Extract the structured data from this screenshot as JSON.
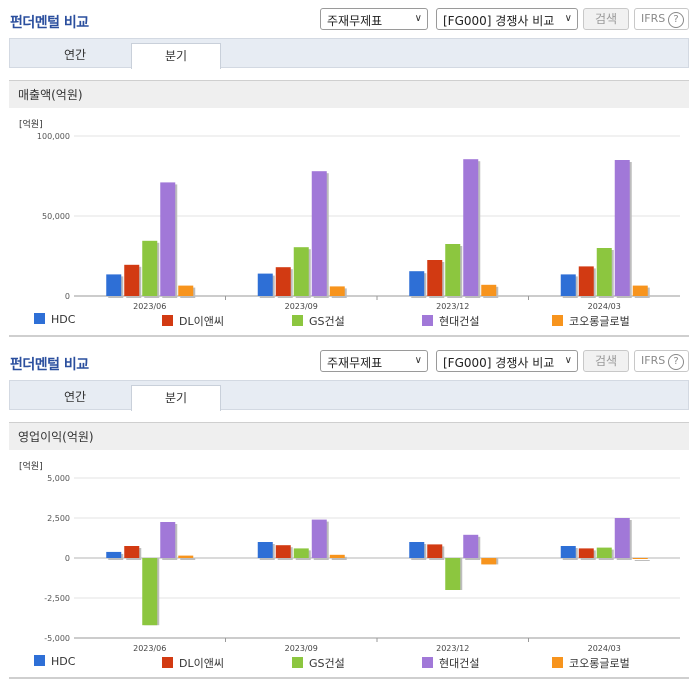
{
  "panels": [
    {
      "title": "펀더멘털 비교",
      "select_statement": "주재무제표",
      "select_group": "[FG000] 경쟁사 비교",
      "search_label": "검색",
      "ifrs_label": "IFRS",
      "ifrs_help": "?",
      "tabs": [
        {
          "label": "연간",
          "active": false
        },
        {
          "label": "분기",
          "active": true
        }
      ],
      "section_label": "매출액(억원)",
      "chart_data": {
        "type": "bar",
        "title": "매출액(억원)",
        "unit_label": "[억원]",
        "categories": [
          "2023/06",
          "2023/09",
          "2023/12",
          "2024/03"
        ],
        "yticks": [
          "100,000",
          "50,000",
          "0"
        ],
        "ytick_values": [
          100000,
          50000,
          0
        ],
        "ylim": [
          0,
          100000
        ],
        "legend_position": "bottom",
        "series": [
          {
            "name": "HDC",
            "color": "#2e6fd6",
            "values": [
              13500,
              14000,
              15500,
              13500
            ]
          },
          {
            "name": "DL이앤씨",
            "color": "#d23a12",
            "values": [
              19500,
              18000,
              22500,
              18500
            ]
          },
          {
            "name": "GS건설",
            "color": "#8cc63f",
            "values": [
              34500,
              30500,
              32500,
              30000
            ]
          },
          {
            "name": "현대건설",
            "color": "#a178d8",
            "values": [
              71000,
              78000,
              85500,
              85000
            ]
          },
          {
            "name": "코오롱글로벌",
            "color": "#f7941d",
            "values": [
              6500,
              6000,
              7000,
              6500
            ]
          }
        ]
      }
    },
    {
      "title": "펀더멘털 비교",
      "select_statement": "주재무제표",
      "select_group": "[FG000] 경쟁사 비교",
      "search_label": "검색",
      "ifrs_label": "IFRS",
      "ifrs_help": "?",
      "tabs": [
        {
          "label": "연간",
          "active": false
        },
        {
          "label": "분기",
          "active": true
        }
      ],
      "section_label": "영업이익(억원)",
      "chart_data": {
        "type": "bar",
        "title": "영업이익(억원)",
        "unit_label": "[억원]",
        "categories": [
          "2023/06",
          "2023/09",
          "2023/12",
          "2024/03"
        ],
        "yticks": [
          "5,000",
          "2,500",
          "0",
          "-2,500",
          "-5,000"
        ],
        "ytick_values": [
          5000,
          2500,
          0,
          -2500,
          -5000
        ],
        "ylim": [
          -5000,
          5000
        ],
        "legend_position": "bottom",
        "series": [
          {
            "name": "HDC",
            "color": "#2e6fd6",
            "values": [
              380,
              1000,
              1000,
              750
            ]
          },
          {
            "name": "DL이앤씨",
            "color": "#d23a12",
            "values": [
              750,
              800,
              850,
              600
            ]
          },
          {
            "name": "GS건설",
            "color": "#8cc63f",
            "values": [
              -4200,
              600,
              -2000,
              650
            ]
          },
          {
            "name": "현대건설",
            "color": "#a178d8",
            "values": [
              2250,
              2400,
              1450,
              2500
            ]
          },
          {
            "name": "코오롱글로벌",
            "color": "#f7941d",
            "values": [
              150,
              200,
              -400,
              0
            ]
          }
        ]
      }
    }
  ]
}
